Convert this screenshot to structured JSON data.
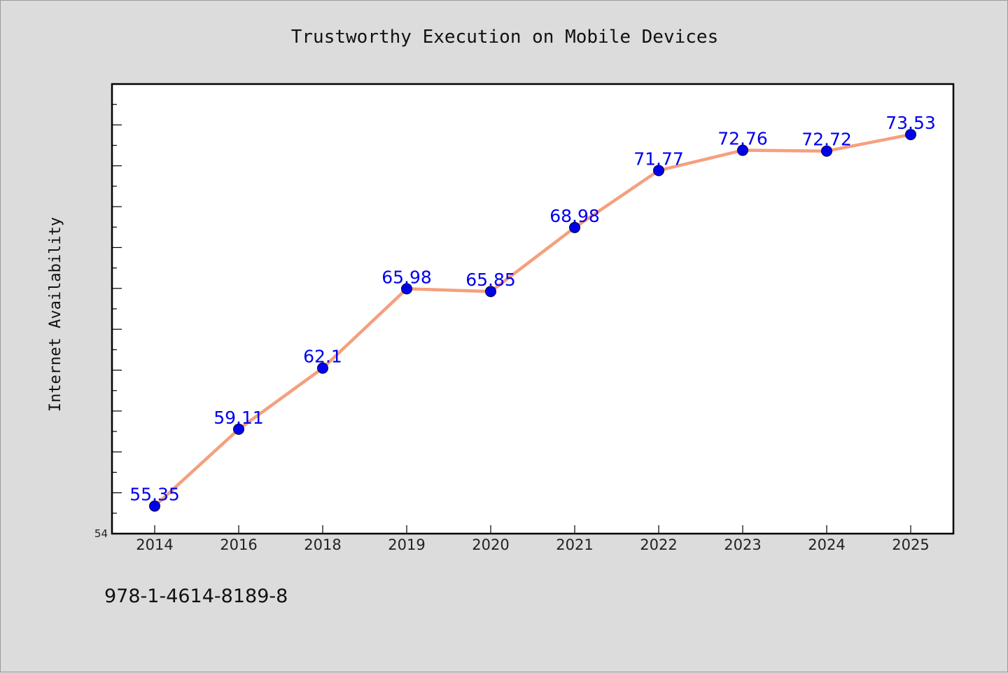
{
  "chart_data": {
    "type": "line",
    "title": "Trustworthy Execution on Mobile Devices",
    "xlabel": "",
    "ylabel": "Internet Availability",
    "categories": [
      "2014",
      "2016",
      "2018",
      "2019",
      "2020",
      "2021",
      "2022",
      "2023",
      "2024",
      "2025"
    ],
    "series": [
      {
        "values": [
          55.35,
          59.11,
          62.1,
          65.98,
          65.85,
          68.98,
          71.77,
          72.76,
          72.72,
          73.53
        ]
      }
    ],
    "ylim": [
      54,
      76
    ],
    "y_tick_labels": [
      "54"
    ],
    "grid": false,
    "legend": "none",
    "colors": {
      "line": "#f4a07e",
      "marker": "#0000ee",
      "data_label": "#0000ee",
      "plot_bg": "#ffffff",
      "figure_bg": "#dcdcdc"
    }
  },
  "footer": {
    "text": "978-1-4614-8189-8"
  }
}
